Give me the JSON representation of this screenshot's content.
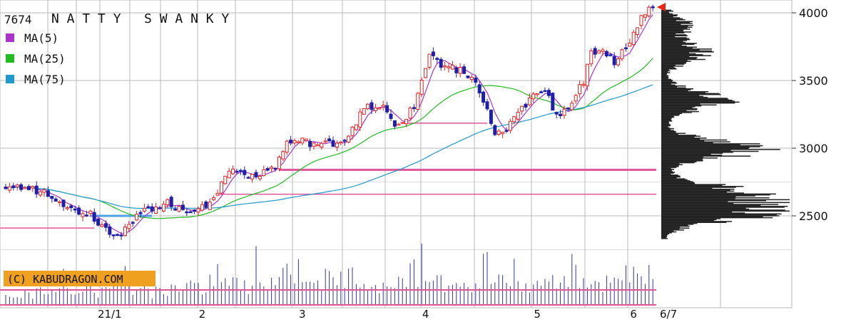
{
  "chart_data": {
    "type": "candlestick",
    "title_code": "7674",
    "title_name": "N A T T Y   S W A N K Y",
    "legend": [
      {
        "label": "MA(5)",
        "color": "#aa33cc"
      },
      {
        "label": "MA(25)",
        "color": "#22bb22"
      },
      {
        "label": "MA(75)",
        "color": "#2299cc"
      }
    ],
    "y_ticks": [
      "4000",
      "3500",
      "3000",
      "2500"
    ],
    "y_tick_values": [
      4000,
      3500,
      3000,
      2500
    ],
    "ylim": [
      1940,
      4110
    ],
    "x_ticks": [
      {
        "label": "21/1",
        "index": 27
      },
      {
        "label": "2",
        "index": 51
      },
      {
        "label": "3",
        "index": 77
      },
      {
        "label": "4",
        "index": 109
      },
      {
        "label": "5",
        "index": 138
      },
      {
        "label": "6",
        "index": 163
      }
    ],
    "last_date": "6/7",
    "watermark": "(C) KABUDRAGON.COM",
    "colors": {
      "up": "#dd2222",
      "down": "#1f1fa8",
      "volume": "#3333aa",
      "support": "#e0559a",
      "profile": "#222222",
      "grid": "#b8b8b8",
      "marker": "#ee2211"
    },
    "horizontal_lines": [
      {
        "price": 2840,
        "from": 71,
        "to": 168,
        "width": 3,
        "color": "#e0559a"
      },
      {
        "price": 2660,
        "from": 55,
        "to": 168,
        "width": 1.5,
        "color": "#e0559a"
      },
      {
        "price": 3185,
        "from": 103,
        "to": 125,
        "width": 1.5,
        "color": "#e0559a"
      },
      {
        "price": 2410,
        "from": 0,
        "to": 23,
        "width": 1.5,
        "color": "#e0559a"
      },
      {
        "price": 2500,
        "from": 22,
        "to": 38,
        "width": 3,
        "color": "#4fa0e0"
      }
    ],
    "anchors": [
      [
        0,
        2720
      ],
      [
        10,
        2680
      ],
      [
        14,
        2620
      ],
      [
        17,
        2540
      ],
      [
        22,
        2520
      ],
      [
        24,
        2450
      ],
      [
        27,
        2390
      ],
      [
        30,
        2370
      ],
      [
        33,
        2480
      ],
      [
        38,
        2560
      ],
      [
        42,
        2600
      ],
      [
        47,
        2540
      ],
      [
        51,
        2560
      ],
      [
        55,
        2680
      ],
      [
        58,
        2840
      ],
      [
        64,
        2800
      ],
      [
        70,
        2860
      ],
      [
        73,
        3040
      ],
      [
        77,
        3050
      ],
      [
        82,
        3020
      ],
      [
        88,
        3060
      ],
      [
        91,
        3200
      ],
      [
        94,
        3320
      ],
      [
        98,
        3300
      ],
      [
        101,
        3150
      ],
      [
        103,
        3200
      ],
      [
        106,
        3300
      ],
      [
        110,
        3700
      ],
      [
        114,
        3600
      ],
      [
        118,
        3580
      ],
      [
        121,
        3520
      ],
      [
        124,
        3350
      ],
      [
        127,
        3100
      ],
      [
        130,
        3130
      ],
      [
        133,
        3250
      ],
      [
        136,
        3360
      ],
      [
        140,
        3420
      ],
      [
        142,
        3300
      ],
      [
        144,
        3250
      ],
      [
        147,
        3350
      ],
      [
        150,
        3500
      ],
      [
        152,
        3700
      ],
      [
        155,
        3730
      ],
      [
        158,
        3640
      ],
      [
        160,
        3700
      ],
      [
        163,
        3850
      ],
      [
        166,
        4010
      ],
      [
        168,
        4060
      ]
    ],
    "volume_anchors": [
      [
        0,
        18
      ],
      [
        22,
        35
      ],
      [
        24,
        28
      ],
      [
        27,
        42
      ],
      [
        38,
        25
      ],
      [
        51,
        40
      ],
      [
        55,
        58
      ],
      [
        58,
        38
      ],
      [
        70,
        50
      ],
      [
        73,
        66
      ],
      [
        88,
        48
      ],
      [
        91,
        55
      ],
      [
        101,
        38
      ],
      [
        106,
        72
      ],
      [
        110,
        44
      ],
      [
        124,
        38
      ],
      [
        127,
        58
      ],
      [
        138,
        40
      ],
      [
        150,
        48
      ],
      [
        163,
        52
      ],
      [
        168,
        60
      ]
    ]
  }
}
